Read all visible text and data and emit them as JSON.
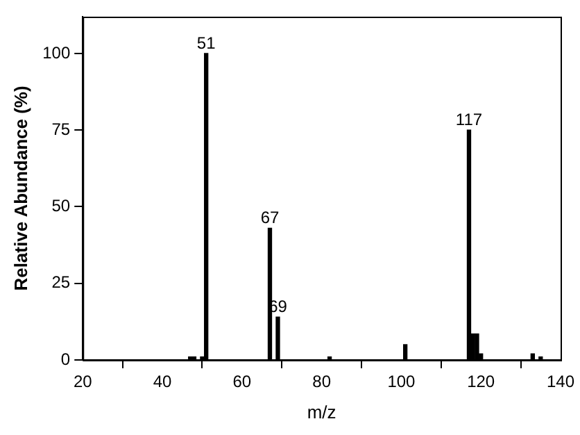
{
  "chart_data": {
    "type": "bar",
    "xlabel": "m/z",
    "ylabel": "Relative Abundance (%)",
    "x": [
      47,
      48,
      50,
      51,
      67,
      69,
      82,
      101,
      117,
      118,
      119,
      120,
      133,
      135
    ],
    "values": [
      1,
      1,
      1,
      100,
      43,
      14,
      1,
      5,
      75,
      8.5,
      8.5,
      2,
      2,
      1
    ],
    "color": "#000000",
    "xlim": [
      20,
      140
    ],
    "xticks": [
      20,
      40,
      60,
      80,
      100,
      120,
      140
    ],
    "ylim": [
      0,
      112
    ],
    "yticks": [
      0,
      25,
      50,
      75,
      100
    ],
    "grid": false,
    "legend": false,
    "annotations": [
      {
        "text": "51",
        "x": 51,
        "y": 100
      },
      {
        "text": "67",
        "x": 67,
        "y": 43
      },
      {
        "text": "69",
        "x": 69,
        "y": 14
      },
      {
        "text": "117",
        "x": 117,
        "y": 75
      }
    ]
  }
}
